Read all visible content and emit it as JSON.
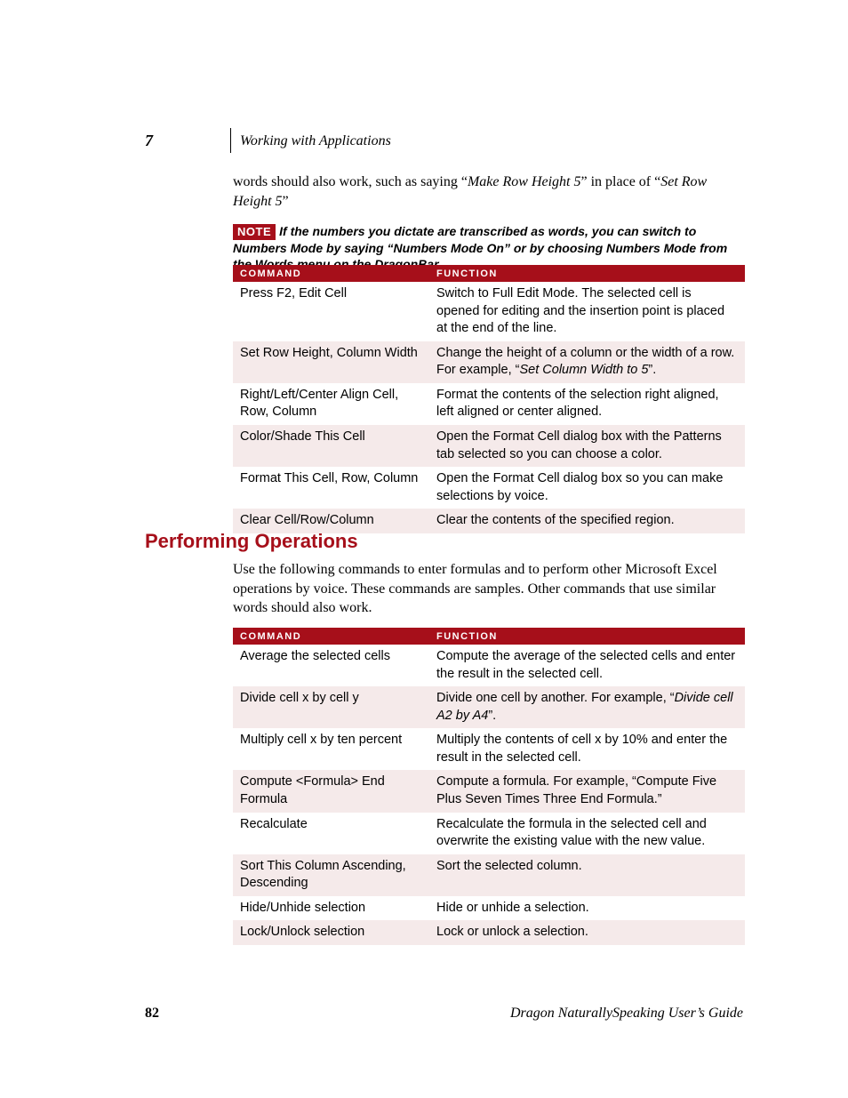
{
  "colors": {
    "brand_red": "#a60f1a",
    "row_tint": "#f5eaea",
    "background": "#ffffff",
    "text": "#000000"
  },
  "header": {
    "chapter_number": "7",
    "chapter_title": "Working with Applications"
  },
  "intro": {
    "pre": "words should also work, such as saying “",
    "em1": "Make Row Height 5",
    "mid": "” in place of “",
    "em2": "Set Row Height 5",
    "post": "”"
  },
  "note": {
    "badge": "NOTE",
    "text": "If the numbers you dictate are transcribed as words, you can switch to Numbers Mode by saying “Numbers Mode On” or by choosing Numbers Mode from the Words menu on the DragonBar."
  },
  "table1": {
    "headers": {
      "col1": "COMMAND",
      "col2": "FUNCTION"
    },
    "rows": [
      {
        "cmd": "Press F2, Edit Cell",
        "fn": "Switch to Full Edit Mode. The selected cell is opened for editing and the insertion point is placed at the end of the line."
      },
      {
        "cmd": "Set Row Height, Column Width",
        "fn_pre": "Change the height of a column or the width of a row. For example, “",
        "fn_em": "Set Column Width to 5",
        "fn_post": "”."
      },
      {
        "cmd": "Right/Left/Center Align Cell, Row, Column",
        "fn": "Format the contents of the selection right aligned, left aligned or center aligned."
      },
      {
        "cmd": "Color/Shade This Cell",
        "fn": "Open the Format Cell dialog box with the Patterns tab selected so you can choose a color."
      },
      {
        "cmd": "Format This Cell, Row, Column",
        "fn": "Open the Format Cell dialog box so you can make selections by voice."
      },
      {
        "cmd": "Clear Cell/Row/Column",
        "fn": "Clear the contents of the specified region."
      }
    ]
  },
  "section": {
    "heading": "Performing Operations",
    "para": "Use the following commands to enter formulas and to perform other Microsoft Excel operations by voice. These commands are samples. Other commands that use similar words should also work."
  },
  "table2": {
    "headers": {
      "col1": "COMMAND",
      "col2": "FUNCTION"
    },
    "rows": [
      {
        "cmd": "Average the selected cells",
        "fn": "Compute the average of the selected cells and enter the result in the selected cell."
      },
      {
        "cmd": "Divide cell x by cell y",
        "fn_pre": "Divide one cell by another. For example, “",
        "fn_em": "Divide cell A2 by A4",
        "fn_post": "”."
      },
      {
        "cmd": "Multiply cell x by ten percent",
        "fn": "Multiply the contents of cell x by 10% and enter the result in the selected cell."
      },
      {
        "cmd": "Compute <Formula> End Formula",
        "fn": "Compute a formula. For example, “Compute Five Plus Seven Times Three End Formula.”"
      },
      {
        "cmd": "Recalculate",
        "fn": "Recalculate the formula in the selected cell and overwrite the existing value with the new value."
      },
      {
        "cmd": "Sort This Column Ascending, Descending",
        "fn": "Sort the selected column."
      },
      {
        "cmd": "Hide/Unhide selection",
        "fn": "Hide or unhide a selection."
      },
      {
        "cmd": "Lock/Unlock selection",
        "fn": "Lock or unlock a selection."
      }
    ]
  },
  "footer": {
    "page": "82",
    "title": "Dragon NaturallySpeaking User’s Guide"
  }
}
